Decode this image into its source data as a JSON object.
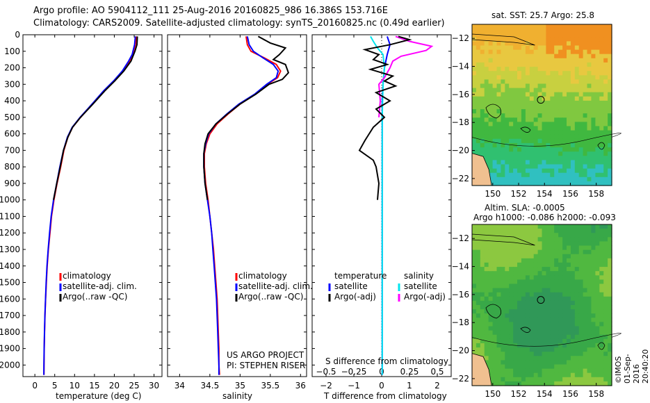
{
  "header": {
    "line1": "Argo profile: AO 5904112_111 25-Aug-2016 20160825_986 16.386S 153.716E",
    "line2": "Climatology: CARS2009. Satellite-adjusted climatology: synTS_20160825.nc (0.49d earlier)"
  },
  "colors": {
    "climatology": "#ff0000",
    "satellite": "#0000ff",
    "argo": "#000000",
    "sat_salinity": "#00e5ee",
    "argo_salinity": "#ff00ff"
  },
  "depth_axis": {
    "ticks": [
      0,
      100,
      200,
      300,
      400,
      500,
      600,
      700,
      800,
      900,
      1000,
      1100,
      1200,
      1300,
      1400,
      1500,
      1600,
      1700,
      1800,
      1900,
      2000
    ],
    "range": [
      0,
      2070
    ]
  },
  "chart_data": [
    {
      "type": "line",
      "id": "temperature",
      "xlabel": "temperature (deg C)",
      "xlim": [
        -3,
        32
      ],
      "xticks": [
        0,
        5,
        10,
        15,
        20,
        25,
        30
      ],
      "legend": [
        "climatology",
        "satellite-adj. clim.",
        "Argo(..raw -QC)"
      ],
      "series": [
        {
          "name": "climatology",
          "color": "#ff0000",
          "points": [
            [
              25.6,
              10
            ],
            [
              25.3,
              60
            ],
            [
              24.6,
              120
            ],
            [
              23.8,
              160
            ],
            [
              22.2,
              220
            ],
            [
              20,
              280
            ],
            [
              17.5,
              340
            ],
            [
              14.5,
              420
            ],
            [
              11.5,
              500
            ],
            [
              9.5,
              560
            ],
            [
              8.3,
              620
            ],
            [
              7.3,
              700
            ],
            [
              6.5,
              800
            ],
            [
              5.6,
              900
            ],
            [
              4.8,
              1000
            ],
            [
              4.2,
              1100
            ],
            [
              3.8,
              1200
            ],
            [
              3.4,
              1300
            ],
            [
              3.1,
              1400
            ],
            [
              2.9,
              1500
            ],
            [
              2.7,
              1600
            ],
            [
              2.55,
              1700
            ],
            [
              2.45,
              1800
            ],
            [
              2.35,
              1900
            ],
            [
              2.3,
              2000
            ],
            [
              2.28,
              2060
            ]
          ]
        },
        {
          "name": "satellite-adj. clim.",
          "color": "#0000ff",
          "points": [
            [
              25.3,
              10
            ],
            [
              25.1,
              60
            ],
            [
              24.5,
              120
            ],
            [
              23.6,
              160
            ],
            [
              22,
              220
            ],
            [
              19.8,
              280
            ],
            [
              17.3,
              340
            ],
            [
              14.4,
              420
            ],
            [
              11.4,
              500
            ],
            [
              9.4,
              560
            ],
            [
              8.2,
              620
            ],
            [
              7.2,
              700
            ],
            [
              6.3,
              800
            ],
            [
              5.5,
              900
            ],
            [
              4.7,
              1000
            ],
            [
              4.1,
              1100
            ],
            [
              3.7,
              1200
            ],
            [
              3.35,
              1300
            ],
            [
              3.05,
              1400
            ],
            [
              2.85,
              1500
            ],
            [
              2.68,
              1600
            ],
            [
              2.53,
              1700
            ],
            [
              2.43,
              1800
            ],
            [
              2.33,
              1900
            ],
            [
              2.28,
              2000
            ],
            [
              2.26,
              2060
            ]
          ]
        },
        {
          "name": "Argo(..raw -QC)",
          "color": "#000000",
          "points": [
            [
              25.8,
              10
            ],
            [
              25.7,
              60
            ],
            [
              25.2,
              100
            ],
            [
              24.2,
              160
            ],
            [
              22.4,
              220
            ],
            [
              20.1,
              280
            ],
            [
              17.6,
              340
            ],
            [
              14.6,
              420
            ],
            [
              11.5,
              500
            ],
            [
              9.5,
              560
            ],
            [
              8.3,
              620
            ],
            [
              7.2,
              700
            ],
            [
              6.4,
              800
            ],
            [
              5.5,
              900
            ],
            [
              4.7,
              1000
            ]
          ]
        }
      ]
    },
    {
      "type": "line",
      "id": "salinity",
      "xlabel": "salinity",
      "xlim": [
        33.8,
        36.1
      ],
      "xticks": [
        34,
        34.5,
        35,
        35.5,
        36
      ],
      "legend": [
        "climatology",
        "satellite-adj. clim.",
        "Argo(..raw -QC)"
      ],
      "annotations": [
        "US ARGO PROJECT",
        "PI: STEPHEN RISER"
      ],
      "series": [
        {
          "name": "climatology",
          "color": "#ff0000",
          "points": [
            [
              35.1,
              10
            ],
            [
              35.12,
              60
            ],
            [
              35.18,
              100
            ],
            [
              35.4,
              140
            ],
            [
              35.6,
              180
            ],
            [
              35.67,
              220
            ],
            [
              35.62,
              260
            ],
            [
              35.45,
              300
            ],
            [
              35.25,
              360
            ],
            [
              35.0,
              420
            ],
            [
              34.8,
              480
            ],
            [
              34.62,
              540
            ],
            [
              34.5,
              600
            ],
            [
              34.44,
              660
            ],
            [
              34.41,
              720
            ],
            [
              34.41,
              800
            ],
            [
              34.43,
              900
            ],
            [
              34.47,
              1000
            ],
            [
              34.5,
              1100
            ],
            [
              34.53,
              1200
            ],
            [
              34.56,
              1300
            ],
            [
              34.58,
              1400
            ],
            [
              34.6,
              1500
            ],
            [
              34.62,
              1600
            ],
            [
              34.63,
              1700
            ],
            [
              34.64,
              1800
            ],
            [
              34.65,
              1900
            ],
            [
              34.65,
              2000
            ],
            [
              34.66,
              2060
            ]
          ]
        },
        {
          "name": "satellite-adj. clim.",
          "color": "#0000ff",
          "points": [
            [
              35.12,
              10
            ],
            [
              35.15,
              60
            ],
            [
              35.22,
              100
            ],
            [
              35.38,
              140
            ],
            [
              35.55,
              180
            ],
            [
              35.63,
              220
            ],
            [
              35.6,
              260
            ],
            [
              35.44,
              300
            ],
            [
              35.24,
              360
            ],
            [
              34.98,
              420
            ],
            [
              34.78,
              480
            ],
            [
              34.6,
              540
            ],
            [
              34.48,
              600
            ],
            [
              34.43,
              660
            ],
            [
              34.4,
              720
            ],
            [
              34.4,
              800
            ],
            [
              34.42,
              900
            ],
            [
              34.46,
              1000
            ],
            [
              34.5,
              1100
            ],
            [
              34.53,
              1200
            ],
            [
              34.55,
              1300
            ],
            [
              34.57,
              1400
            ],
            [
              34.59,
              1500
            ],
            [
              34.61,
              1600
            ],
            [
              34.62,
              1700
            ],
            [
              34.63,
              1800
            ],
            [
              34.64,
              1900
            ],
            [
              34.65,
              2000
            ],
            [
              34.65,
              2060
            ]
          ]
        },
        {
          "name": "Argo(..raw -QC)",
          "color": "#000000",
          "points": [
            [
              35.3,
              10
            ],
            [
              35.5,
              50
            ],
            [
              35.75,
              80
            ],
            [
              35.65,
              120
            ],
            [
              35.55,
              150
            ],
            [
              35.75,
              180
            ],
            [
              35.8,
              230
            ],
            [
              35.7,
              270
            ],
            [
              35.48,
              300
            ],
            [
              35.26,
              360
            ],
            [
              35.0,
              420
            ],
            [
              34.79,
              480
            ],
            [
              34.6,
              540
            ],
            [
              34.47,
              600
            ],
            [
              34.42,
              660
            ],
            [
              34.4,
              720
            ],
            [
              34.4,
              800
            ],
            [
              34.42,
              900
            ],
            [
              34.46,
              1000
            ]
          ]
        }
      ]
    },
    {
      "type": "line",
      "id": "difference",
      "xlabel": "T difference from climatology",
      "xlabel2": "S difference from climatology",
      "xlim": [
        -2.5,
        2.5
      ],
      "xticks": [
        -2,
        -1,
        0,
        1,
        2
      ],
      "x2ticks": [
        -0.5,
        -0.25,
        0,
        0.25,
        0.5
      ],
      "legend_temperature": [
        "temperature",
        "satellite",
        "Argo(-adj)"
      ],
      "legend_salinity": [
        "salinity",
        "satellite",
        "Argo(-adj)"
      ],
      "series": [
        {
          "name": "T satellite",
          "color": "#0000ff",
          "points": [
            [
              0.2,
              10
            ],
            [
              0.3,
              60
            ],
            [
              0.2,
              120
            ],
            [
              0.1,
              200
            ],
            [
              0.05,
              300
            ],
            [
              0.02,
              400
            ],
            [
              0.02,
              600
            ],
            [
              0.02,
              1000
            ],
            [
              0.02,
              1500
            ],
            [
              0.02,
              2000
            ],
            [
              0.02,
              2060
            ]
          ]
        },
        {
          "name": "S satellite",
          "color": "#00e5ee",
          "points": [
            [
              -0.4,
              10
            ],
            [
              -0.3,
              40
            ],
            [
              -0.15,
              80
            ],
            [
              0.05,
              120
            ],
            [
              0.1,
              200
            ],
            [
              0.05,
              300
            ],
            [
              0.02,
              500
            ],
            [
              0.02,
              800
            ],
            [
              0.02,
              1200
            ],
            [
              0.02,
              1600
            ],
            [
              0.02,
              2060
            ]
          ]
        },
        {
          "name": "S Argo(-adj)",
          "color": "#ff00ff",
          "points": [
            [
              0.5,
              10
            ],
            [
              1.0,
              40
            ],
            [
              1.8,
              70
            ],
            [
              1.6,
              95
            ],
            [
              0.7,
              130
            ],
            [
              0.4,
              160
            ],
            [
              0.3,
              200
            ],
            [
              0.1,
              260
            ],
            [
              -0.1,
              300
            ],
            [
              -0.05,
              400
            ],
            [
              -0.1,
              500
            ]
          ]
        },
        {
          "name": "T Argo(-adj)",
          "color": "#000000",
          "points": [
            [
              0.6,
              10
            ],
            [
              1.0,
              30
            ],
            [
              0.3,
              60
            ],
            [
              -0.6,
              90
            ],
            [
              -0.1,
              120
            ],
            [
              -0.3,
              150
            ],
            [
              0.2,
              180
            ],
            [
              -0.4,
              210
            ],
            [
              0.4,
              250
            ],
            [
              0.1,
              280
            ],
            [
              0.5,
              310
            ],
            [
              -0.2,
              350
            ],
            [
              0.3,
              400
            ],
            [
              -0.2,
              450
            ],
            [
              0.1,
              500
            ],
            [
              -0.3,
              560
            ],
            [
              -0.6,
              640
            ],
            [
              -0.8,
              700
            ],
            [
              -0.3,
              760
            ],
            [
              -0.2,
              800
            ],
            [
              -0.1,
              900
            ],
            [
              -0.15,
              1000
            ]
          ]
        }
      ]
    }
  ],
  "maps": {
    "sst": {
      "title": "sat. SST: 25.7  Argo: 25.8"
    },
    "sla": {
      "title_line1": "Altim. SLA: -0.0005",
      "title_line2": "Argo h1000: -0.086  h2000: -0.093"
    },
    "lon_ticks": [
      "150",
      "152",
      "154",
      "156",
      "158"
    ],
    "lat_ticks": [
      "-12",
      "-14",
      "-16",
      "-18",
      "-20",
      "-22"
    ]
  },
  "footer": {
    "timestamp": "©IMOS 01-Sep-2016 20:40:20"
  }
}
